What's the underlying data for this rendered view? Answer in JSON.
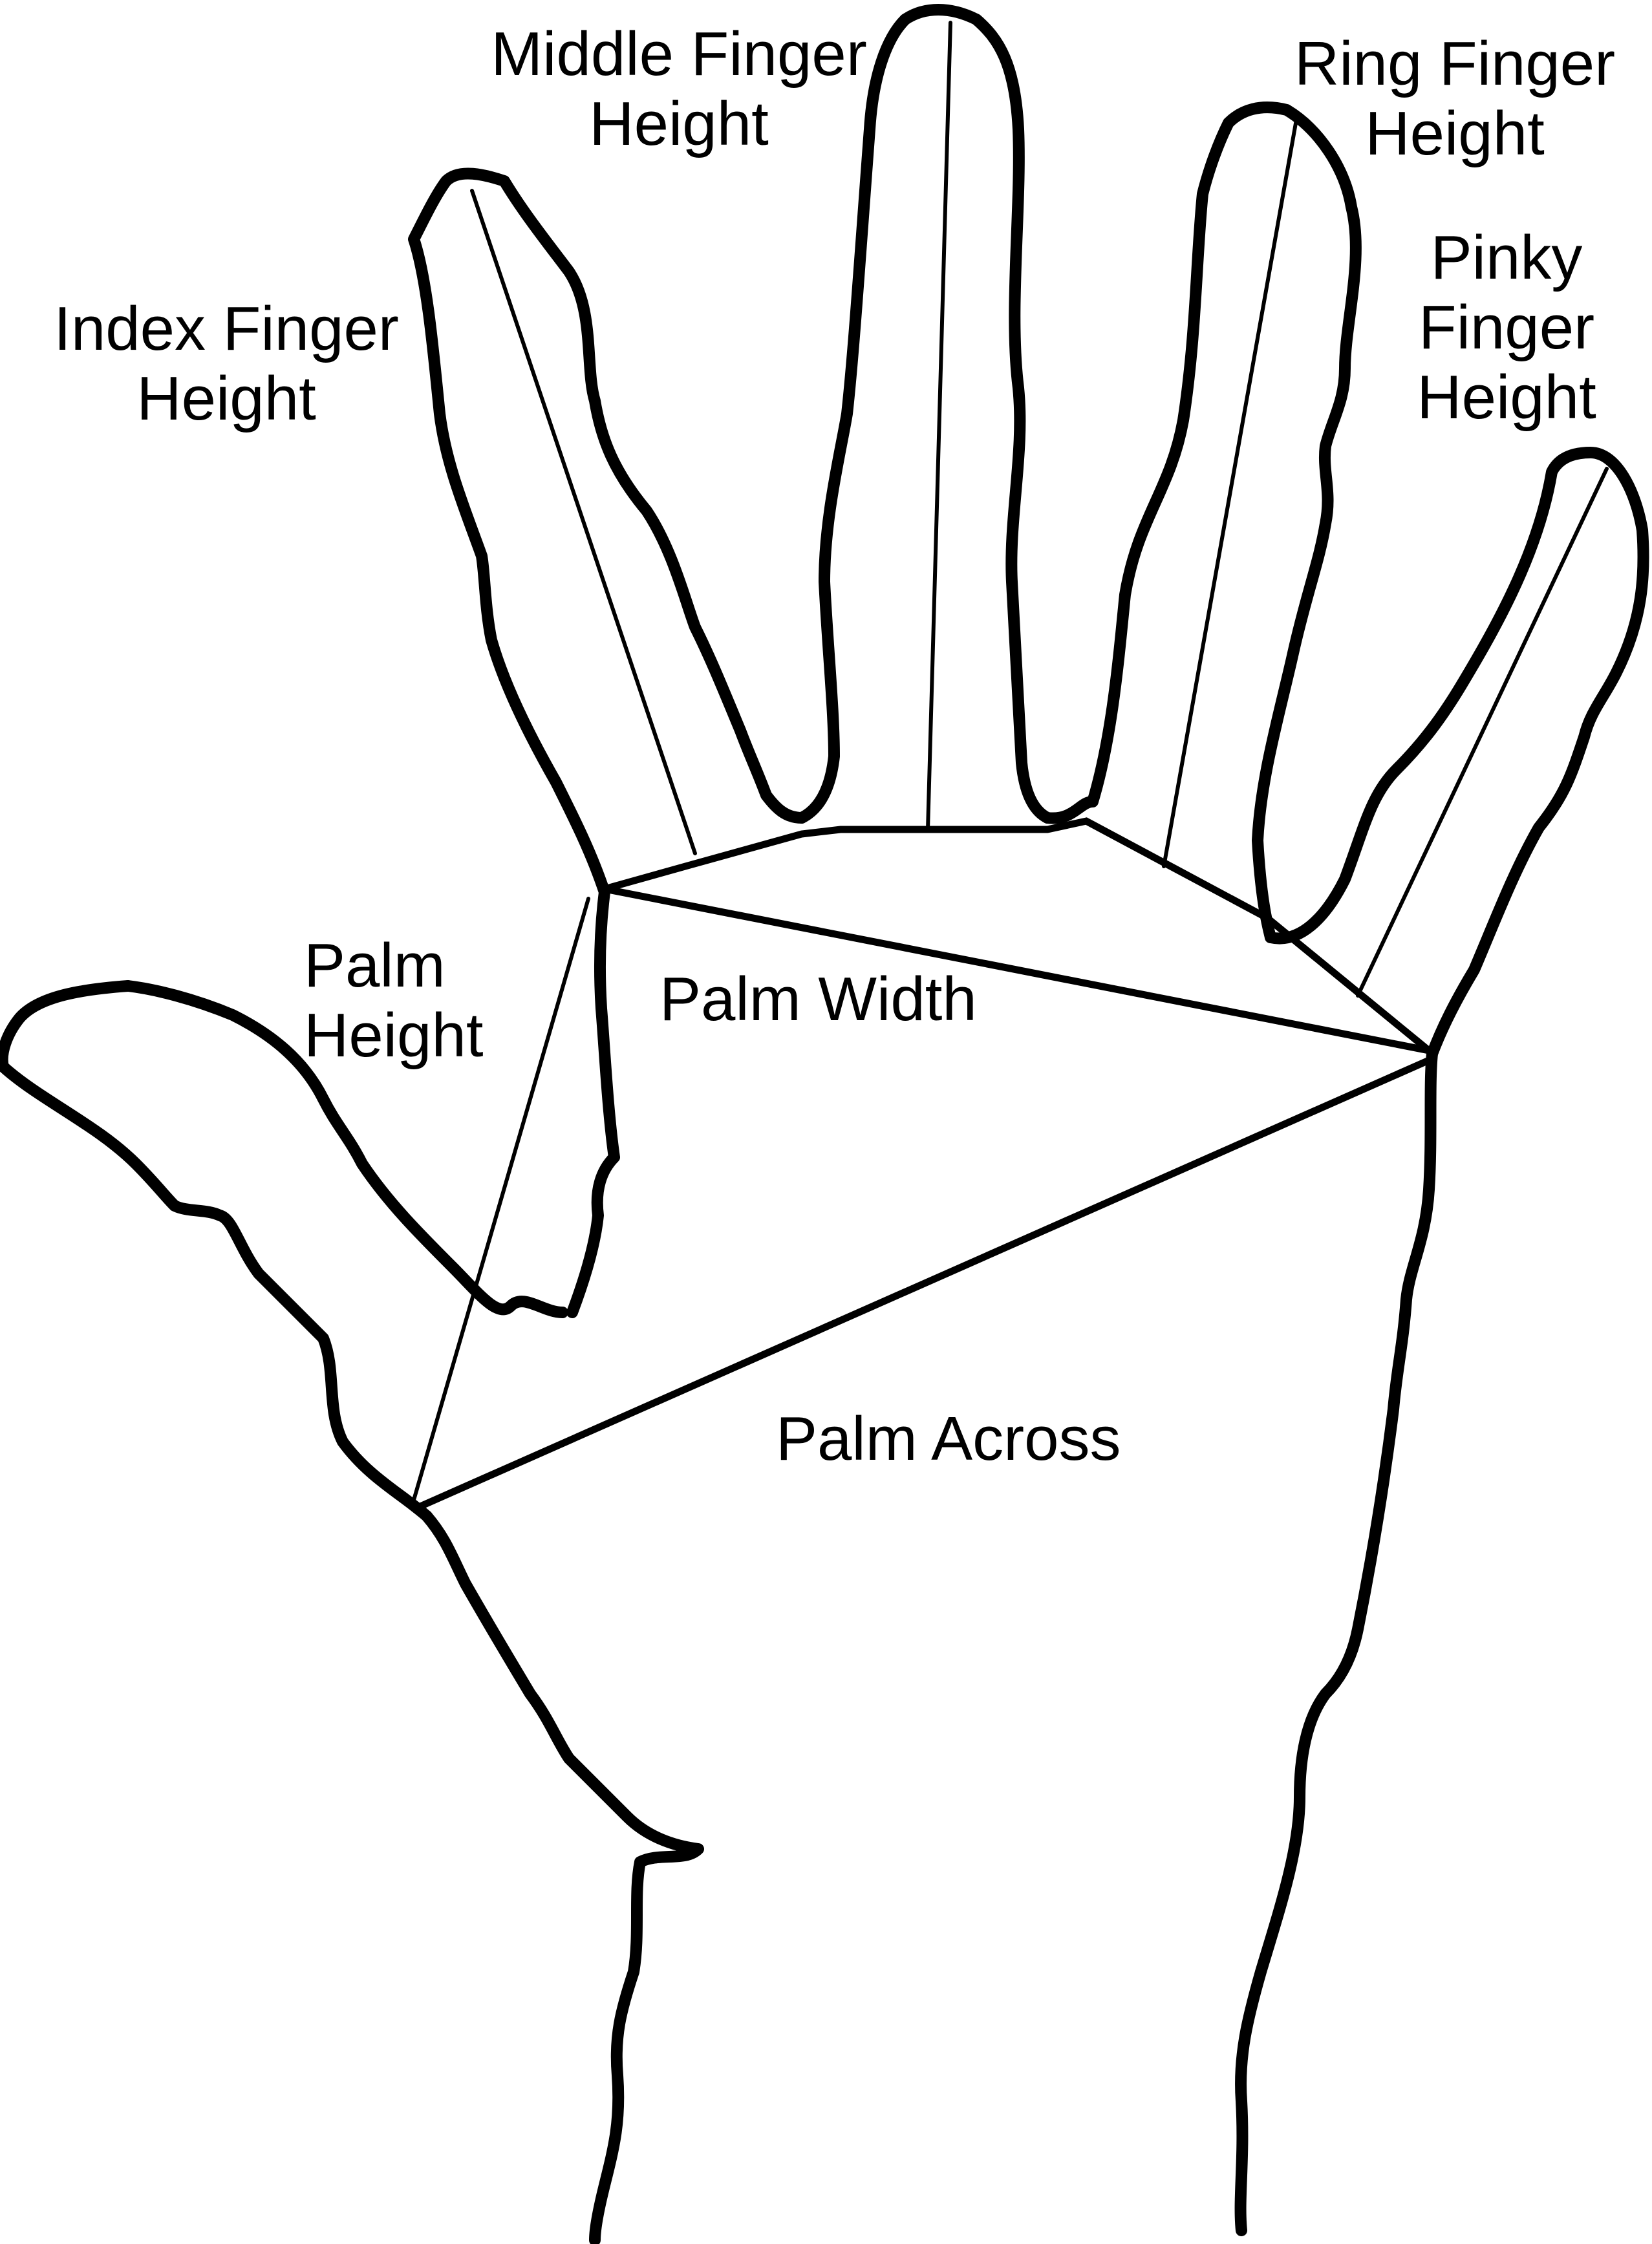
{
  "labels": {
    "middle_finger": [
      "Middle Finger",
      "Height"
    ],
    "ring_finger": [
      "Ring Finger",
      "Height"
    ],
    "pinky_finger": [
      "Pinky",
      "Finger",
      "Height"
    ],
    "index_finger": [
      "Index Finger",
      "Height"
    ],
    "palm_height": [
      "Palm",
      "Height"
    ],
    "palm_width": "Palm Width",
    "palm_across": "Palm Across"
  },
  "colors": {
    "line": "#000000",
    "background": "#ffffff"
  }
}
